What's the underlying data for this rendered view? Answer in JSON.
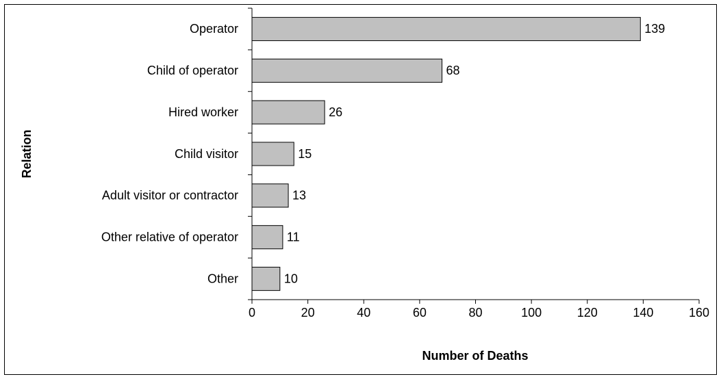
{
  "chart_data": {
    "type": "bar",
    "orientation": "horizontal",
    "x_label": "Number of Deaths",
    "y_label": "Relation",
    "categories": [
      "Operator",
      "Child of operator",
      "Hired worker",
      "Child visitor",
      "Adult visitor or contractor",
      "Other relative of operator",
      "Other"
    ],
    "values": [
      139,
      68,
      26,
      15,
      13,
      11,
      10
    ],
    "color": "#c0c0c0",
    "xlim": [
      0,
      160
    ],
    "xticks": [
      0,
      20,
      40,
      60,
      80,
      100,
      120,
      140,
      160
    ]
  }
}
